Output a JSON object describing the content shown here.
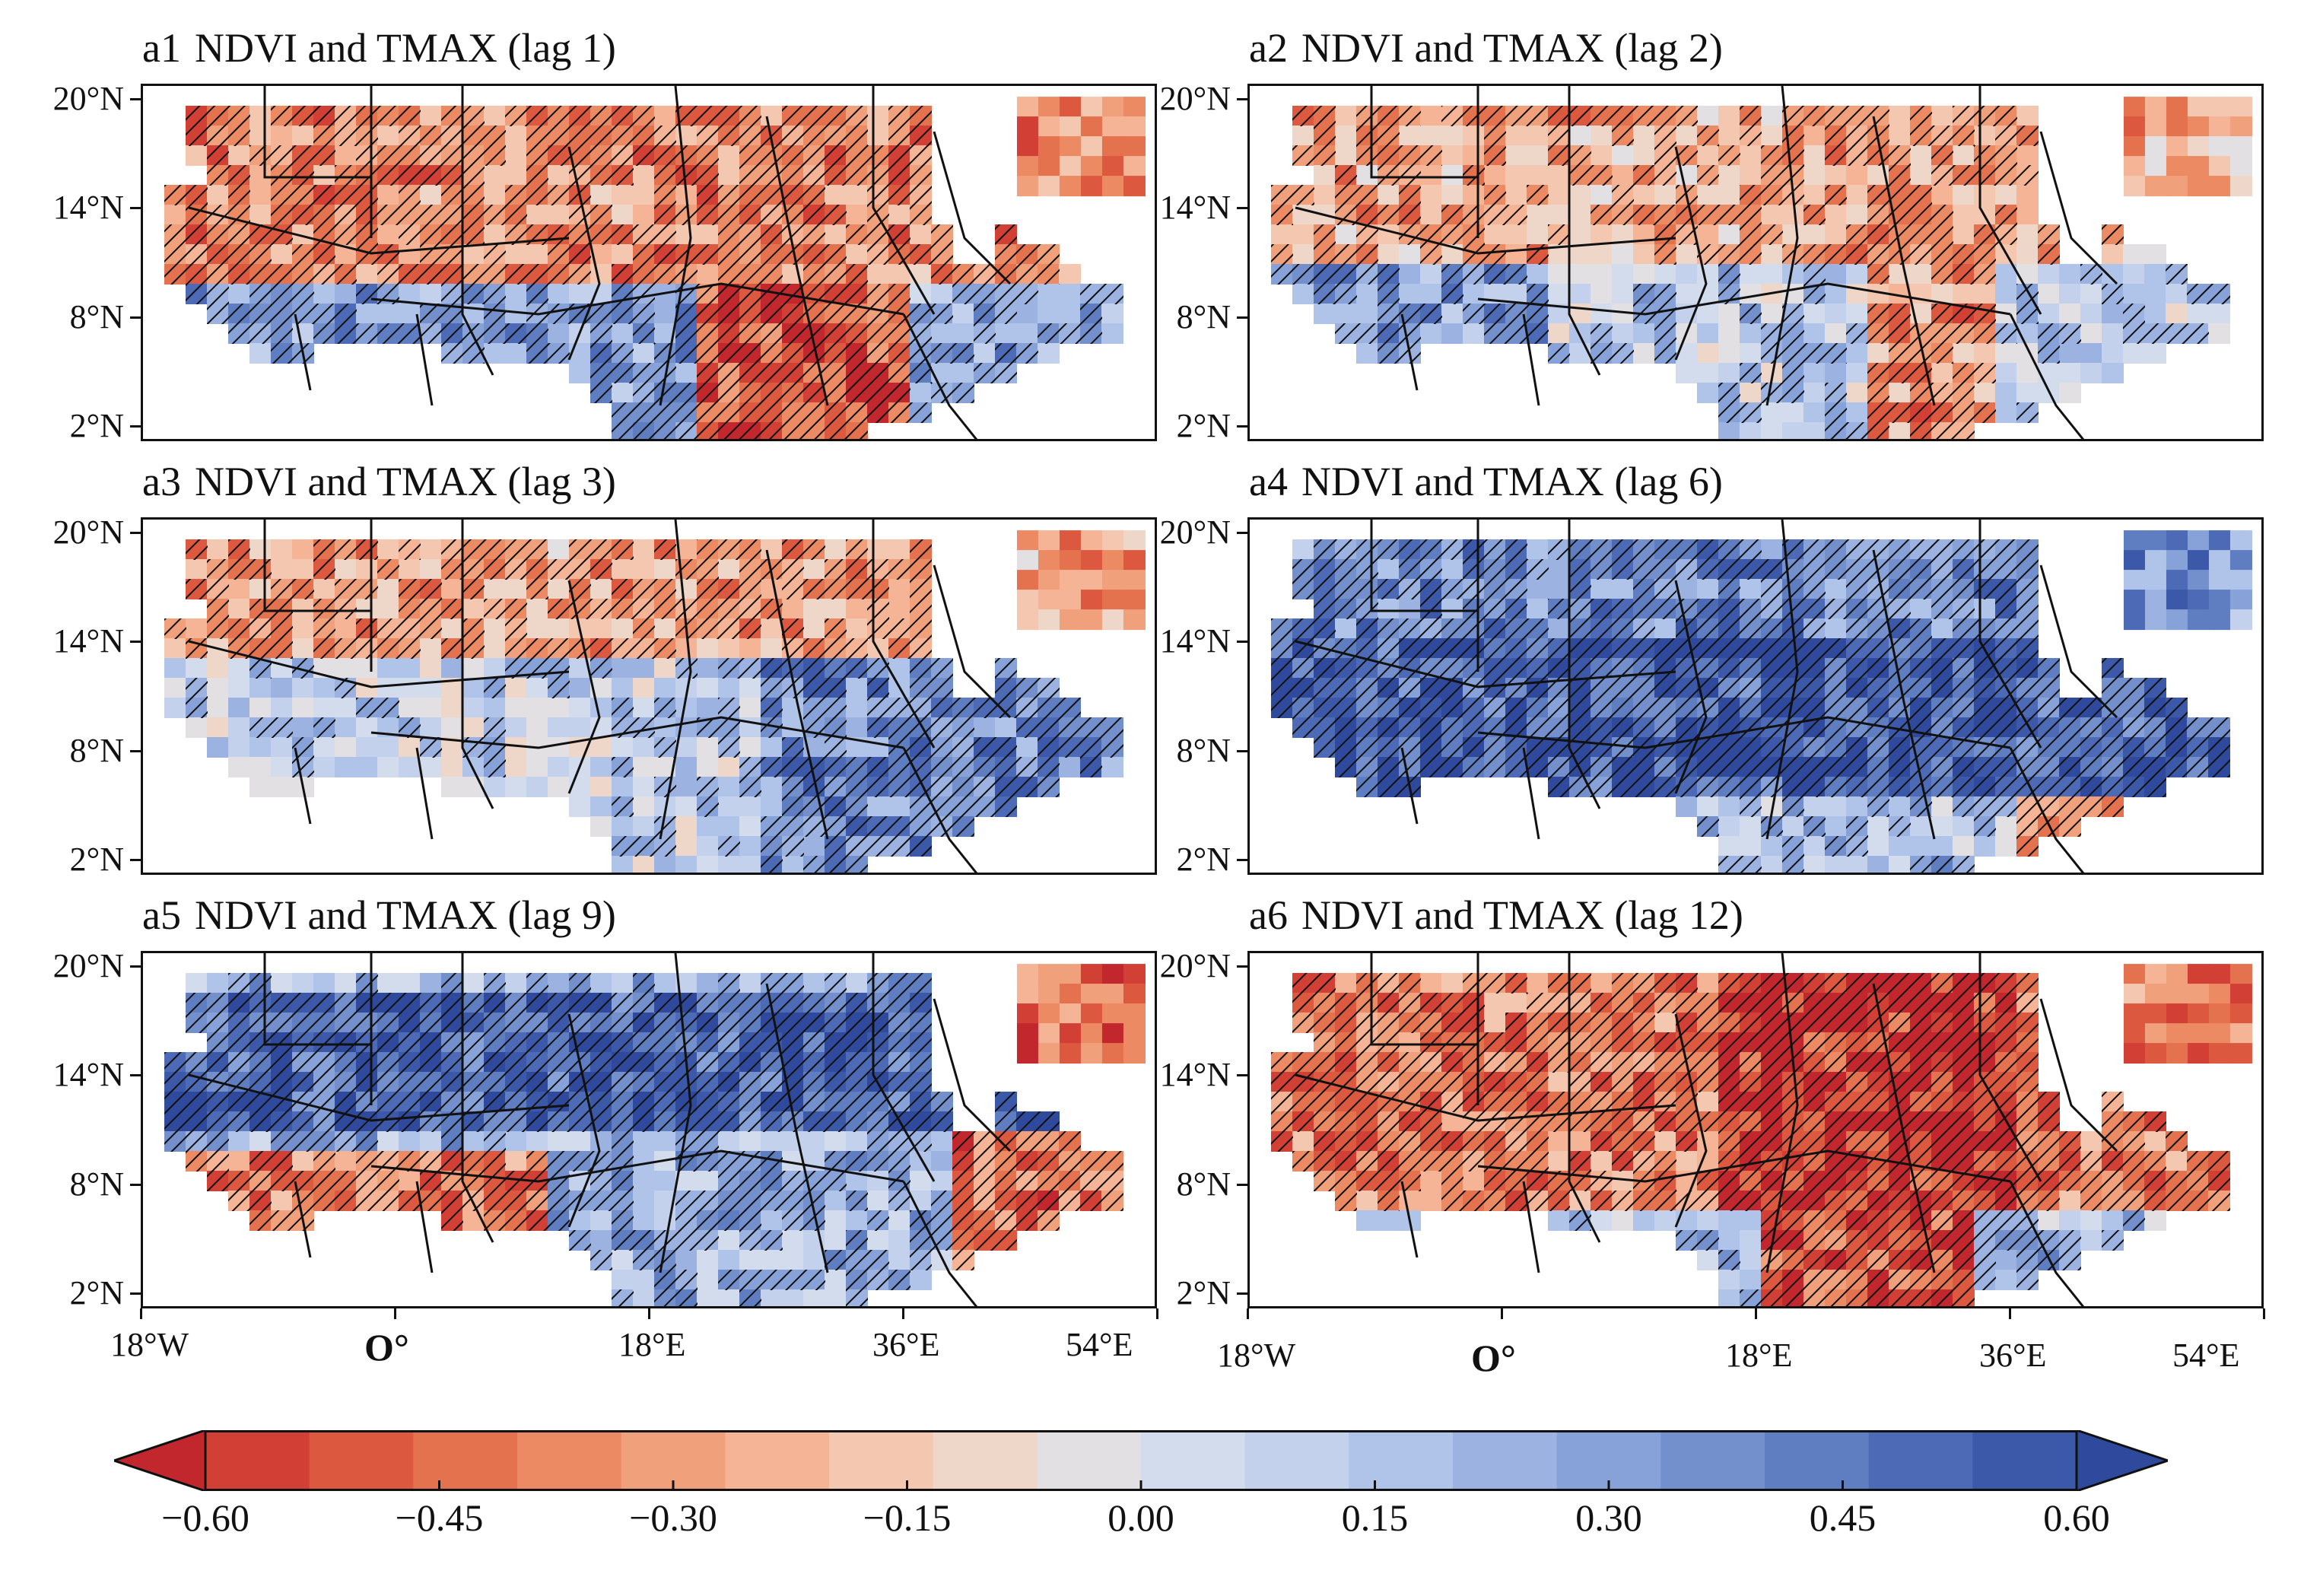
{
  "figure": {
    "panels": [
      {
        "id": "a1",
        "title": "NDVI and TMAX (lag 1)",
        "pattern": "lag1"
      },
      {
        "id": "a2",
        "title": "NDVI and TMAX (lag 2)",
        "pattern": "lag2"
      },
      {
        "id": "a3",
        "title": "NDVI and TMAX (lag 3)",
        "pattern": "lag3"
      },
      {
        "id": "a4",
        "title": "NDVI and TMAX (lag 6)",
        "pattern": "lag6"
      },
      {
        "id": "a5",
        "title": "NDVI and TMAX (lag 9)",
        "pattern": "lag9"
      },
      {
        "id": "a6",
        "title": "NDVI and TMAX (lag 12)",
        "pattern": "lag12"
      }
    ],
    "lat_labels": [
      "20°N",
      "14°N",
      "8°N",
      "2°N"
    ],
    "lon_labels": [
      "18°W",
      "O°",
      "18°E",
      "36°E",
      "54°E"
    ]
  },
  "colorbar": {
    "ticks": [
      "−0.60",
      "−0.45",
      "−0.30",
      "−0.15",
      "0.00",
      "0.15",
      "0.30",
      "0.45",
      "0.60"
    ],
    "colors": [
      "#c2272d",
      "#d23f35",
      "#dc5940",
      "#e5724f",
      "#ec8a64",
      "#f1a07c",
      "#f4b495",
      "#f3c7b0",
      "#eed7c8",
      "#e2e0e2",
      "#d3dcec",
      "#c3d1ed",
      "#b0c3e8",
      "#9cb3e1",
      "#87a2d8",
      "#7390cd",
      "#5f7dc1",
      "#4c6ab5",
      "#3c58a8",
      "#2f4a9c"
    ]
  }
}
